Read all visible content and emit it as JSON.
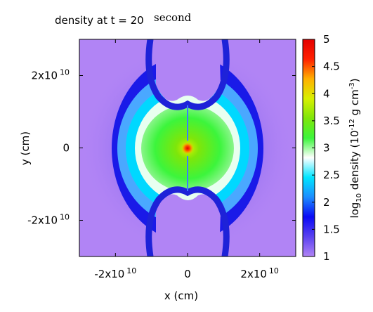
{
  "chart_data": {
    "type": "heatmap",
    "title": "density at t = 20",
    "title_unit": "second",
    "xlabel": "x (cm)",
    "ylabel": "y (cm)",
    "x_range": [
      -30000000000.0,
      30000000000.0
    ],
    "y_range": [
      -30000000000.0,
      30000000000.0
    ],
    "x_ticks": [
      {
        "value": -20000000000.0,
        "label": "-2x10",
        "exp": "10"
      },
      {
        "value": 0,
        "label": "0",
        "exp": ""
      },
      {
        "value": 20000000000.0,
        "label": "2x10",
        "exp": "10"
      }
    ],
    "y_ticks": [
      {
        "value": 20000000000.0,
        "label": "2x10",
        "exp": "10"
      },
      {
        "value": 0,
        "label": "0",
        "exp": ""
      },
      {
        "value": -20000000000.0,
        "label": "-2x10",
        "exp": "10"
      }
    ],
    "colorbar": {
      "label_pre": "log",
      "label_sub": "10",
      "label_mid": " density (10",
      "label_sup1": "-12",
      "label_mid2": " g cm",
      "label_sup2": "-3",
      "label_post": ")",
      "range": [
        1,
        5
      ],
      "ticks": [
        "1",
        "1.5",
        "2",
        "2.5",
        "3",
        "3.5",
        "4",
        "4.5",
        "5"
      ],
      "colors": [
        "#b184f5",
        "#5a42f0",
        "#0a0af5",
        "#1c8cff",
        "#00e5ff",
        "#ffffff",
        "#3cf53c",
        "#7ee60a",
        "#d8f000",
        "#ffb000",
        "#ff2000",
        "#e40000"
      ]
    },
    "structures": {
      "background_log_density": 1.1,
      "outer_halo_log_density": 1.3,
      "shell_log_density": 1.6,
      "shell_inner_log_density": 2.3,
      "front_log_density": 3.0,
      "core_log_density": 3.6,
      "center_log_density": 4.8
    }
  }
}
